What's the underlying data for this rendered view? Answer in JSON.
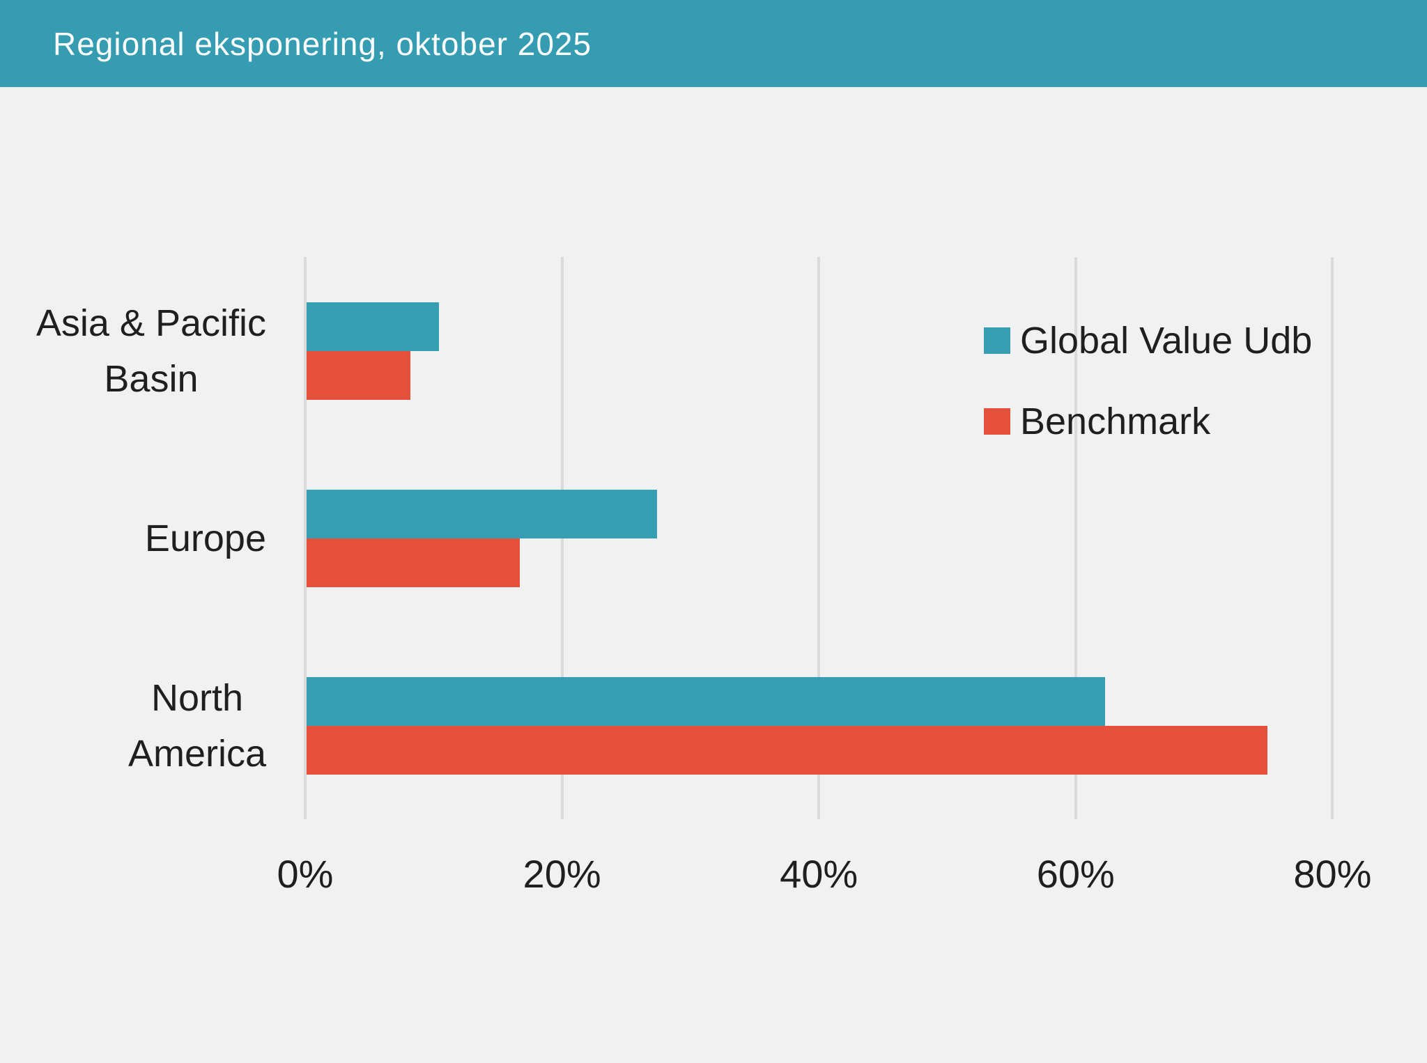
{
  "header": {
    "title": "Regional eksponering, oktober 2025"
  },
  "colors": {
    "header_bg": "#369CB1",
    "background": "#F1F1F2",
    "gridline": "#D9DADB",
    "text": "#1F1F1F",
    "title_text": "#FBFDFD",
    "series_teal": "#359EB3",
    "series_red": "#E5503D"
  },
  "chart_data": {
    "type": "bar",
    "orientation": "horizontal",
    "title": "Regional eksponering, oktober 2025",
    "categories": [
      "Asia & Pacific Basin",
      "Europe",
      "North America"
    ],
    "category_label_lines": [
      [
        "Asia & Pacific",
        "Basin"
      ],
      [
        "Europe"
      ],
      [
        "North",
        "America"
      ]
    ],
    "series": [
      {
        "name": "Global Value Udb",
        "color": "#359EB3",
        "values": [
          10.3,
          27.3,
          62.2
        ]
      },
      {
        "name": "Benchmark",
        "color": "#E5503D",
        "values": [
          8.1,
          16.6,
          74.8
        ]
      }
    ],
    "xlabel": "",
    "ylabel": "",
    "xlim": [
      0,
      80
    ],
    "x_tick_values": [
      0,
      20,
      40,
      60,
      80
    ],
    "x_tick_labels": [
      "0%",
      "20%",
      "40%",
      "60%",
      "80%"
    ],
    "grid": true,
    "legend_position": "right"
  }
}
